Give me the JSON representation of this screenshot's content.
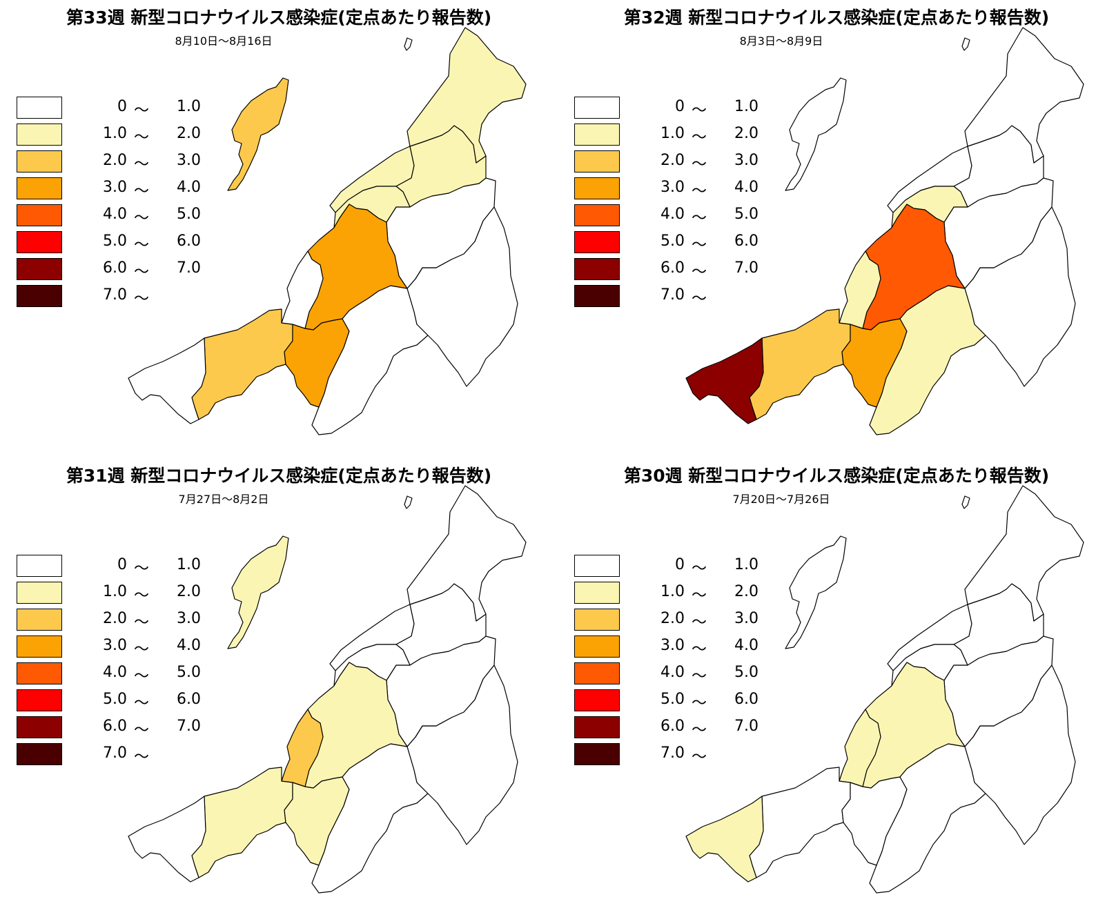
{
  "legend": {
    "classes": [
      {
        "low": "0",
        "tilde": "〜",
        "high": "1.0",
        "color": "#ffffff"
      },
      {
        "low": "1.0",
        "tilde": "〜",
        "high": "2.0",
        "color": "#fbf5b4"
      },
      {
        "low": "2.0",
        "tilde": "〜",
        "high": "3.0",
        "color": "#fcc94c"
      },
      {
        "low": "3.0",
        "tilde": "〜",
        "high": "4.0",
        "color": "#fba305"
      },
      {
        "low": "4.0",
        "tilde": "〜",
        "high": "5.0",
        "color": "#ff5a03"
      },
      {
        "low": "5.0",
        "tilde": "〜",
        "high": "6.0",
        "color": "#ff0000"
      },
      {
        "low": "6.0",
        "tilde": "〜",
        "high": "7.0",
        "color": "#8c0000"
      },
      {
        "low": "7.0",
        "tilde": "〜",
        "high": "",
        "color": "#4a0000"
      }
    ]
  },
  "maps": [
    {
      "title": "第33週 新型コロナウイルス感染症(定点あたり報告数)",
      "date_range": "8月10日〜8月16日",
      "region_levels": {
        "sado": 2,
        "north_a": 1,
        "north_b": 1,
        "north_c": 1,
        "north_d": 0,
        "coast": 1,
        "center": 3,
        "east_a": 0,
        "east_b": 0,
        "west_strip": 0,
        "west_mid": 2,
        "south_mid": 3,
        "southeast": 0,
        "southwest": 0,
        "awashima": 0
      }
    },
    {
      "title": "第32週 新型コロナウイルス感染症(定点あたり報告数)",
      "date_range": "8月3日〜8月9日",
      "region_levels": {
        "sado": 0,
        "north_a": 0,
        "north_b": 0,
        "north_c": 0,
        "north_d": 0,
        "coast": 1,
        "center": 4,
        "east_a": 1,
        "east_b": 0,
        "west_strip": 1,
        "west_mid": 2,
        "south_mid": 3,
        "southeast": 1,
        "southwest": 6,
        "awashima": 0
      }
    },
    {
      "title": "第31週 新型コロナウイルス感染症(定点あたり報告数)",
      "date_range": "7月27日〜8月2日",
      "region_levels": {
        "sado": 1,
        "north_a": 0,
        "north_b": 0,
        "north_c": 0,
        "north_d": 0,
        "coast": 0,
        "center": 1,
        "east_a": 0,
        "east_b": 0,
        "west_strip": 2,
        "west_mid": 1,
        "south_mid": 1,
        "southeast": 0,
        "southwest": 0,
        "awashima": 0
      }
    },
    {
      "title": "第30週 新型コロナウイルス感染症(定点あたり報告数)",
      "date_range": "7月20日〜7月26日",
      "region_levels": {
        "sado": 0,
        "north_a": 0,
        "north_b": 0,
        "north_c": 0,
        "north_d": 0,
        "coast": 0,
        "center": 1,
        "east_a": 0,
        "east_b": 0,
        "west_strip": 1,
        "west_mid": 0,
        "south_mid": 0,
        "southeast": 0,
        "southwest": 1,
        "awashima": 0
      }
    }
  ]
}
